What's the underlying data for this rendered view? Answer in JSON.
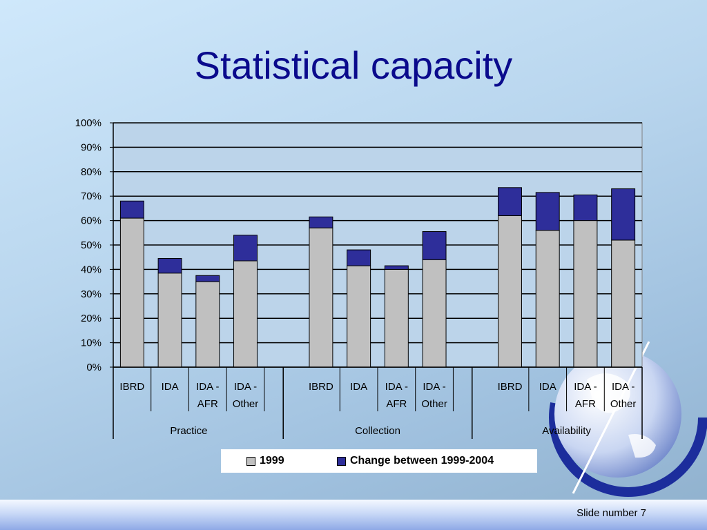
{
  "slide": {
    "title": "Statistical capacity",
    "slide_number": "Slide number 7"
  },
  "colors": {
    "base": "#c0c0c0",
    "change": "#2e2e9a",
    "title": "#0a0a8c"
  },
  "chart_data": {
    "type": "bar",
    "stacked": true,
    "groups": [
      {
        "name": "Practice",
        "categories": [
          "IBRD",
          "IDA",
          "IDA - AFR",
          "IDA - Other"
        ]
      },
      {
        "name": "Collection",
        "categories": [
          "IBRD",
          "IDA",
          "IDA - AFR",
          "IDA - Other"
        ]
      },
      {
        "name": "Availability",
        "categories": [
          "IBRD",
          "IDA",
          "IDA - AFR",
          "IDA - Other"
        ]
      }
    ],
    "series": [
      {
        "name": "1999",
        "color": "#c0c0c0",
        "values": [
          61,
          38.5,
          35,
          43.5,
          57,
          41.5,
          40,
          44,
          62,
          56,
          60,
          52
        ]
      },
      {
        "name": "Change between 1999-2004",
        "color": "#2e2e9a",
        "values": [
          7,
          6,
          2.5,
          10.5,
          4.5,
          6.5,
          1.5,
          11.5,
          11.5,
          15.5,
          10.5,
          21
        ]
      }
    ],
    "ylim": [
      0,
      100
    ],
    "yticks": [
      "0%",
      "10%",
      "20%",
      "30%",
      "40%",
      "50%",
      "60%",
      "70%",
      "80%",
      "90%",
      "100%"
    ],
    "grid": true,
    "legend": "bottom"
  }
}
